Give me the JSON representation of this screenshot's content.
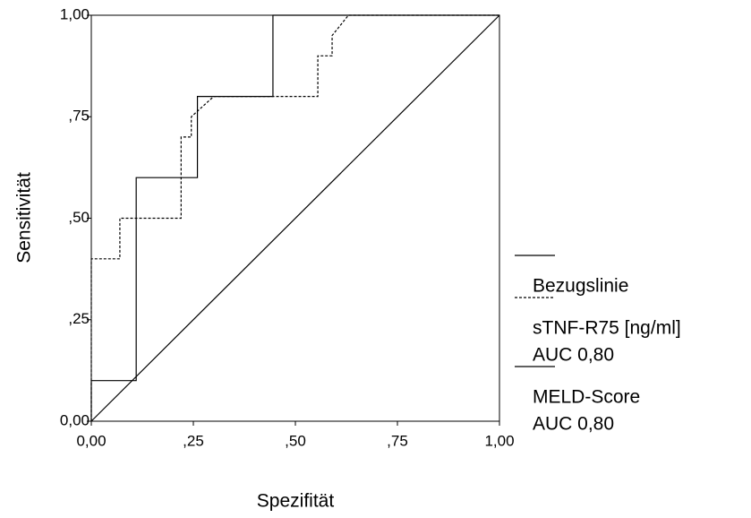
{
  "chart_data": {
    "type": "line",
    "x_label": "Spezifität",
    "y_label": "Sensitivität",
    "xlim": [
      0,
      1
    ],
    "ylim": [
      0,
      1
    ],
    "xticks": [
      {
        "value": 0,
        "label": "0,00"
      },
      {
        "value": 0.25,
        "label": ",25"
      },
      {
        "value": 0.5,
        "label": ",50"
      },
      {
        "value": 0.75,
        "label": ",75"
      },
      {
        "value": 1,
        "label": "1,00"
      }
    ],
    "yticks": [
      {
        "value": 0,
        "label": "0,00"
      },
      {
        "value": 0.25,
        "label": ",25"
      },
      {
        "value": 0.5,
        "label": ",50"
      },
      {
        "value": 0.75,
        "label": ",75"
      },
      {
        "value": 1,
        "label": "1,00"
      }
    ],
    "series": [
      {
        "name": "Bezugslinie",
        "color": "#000000",
        "dashed": false,
        "x": [
          0,
          1
        ],
        "values": [
          0,
          1
        ]
      },
      {
        "name": "sTNF-R75 [ng/ml]",
        "auc": "AUC 0,80",
        "color": "#000000",
        "dashed": true,
        "x": [
          0,
          0,
          0.07,
          0.07,
          0.22,
          0.22,
          0.245,
          0.245,
          0.3,
          0.555,
          0.555,
          0.59,
          0.59,
          0.63,
          1
        ],
        "values": [
          0,
          0.4,
          0.4,
          0.5,
          0.5,
          0.7,
          0.7,
          0.75,
          0.8,
          0.8,
          0.9,
          0.9,
          0.95,
          1,
          1
        ]
      },
      {
        "name": "MELD-Score",
        "auc": "AUC 0,80",
        "color": "#000000",
        "dashed": false,
        "x": [
          0,
          0,
          0.11,
          0.11,
          0.26,
          0.26,
          0.445,
          0.445,
          1
        ],
        "values": [
          0,
          0.1,
          0.1,
          0.6,
          0.6,
          0.8,
          0.8,
          1,
          1
        ]
      }
    ]
  }
}
